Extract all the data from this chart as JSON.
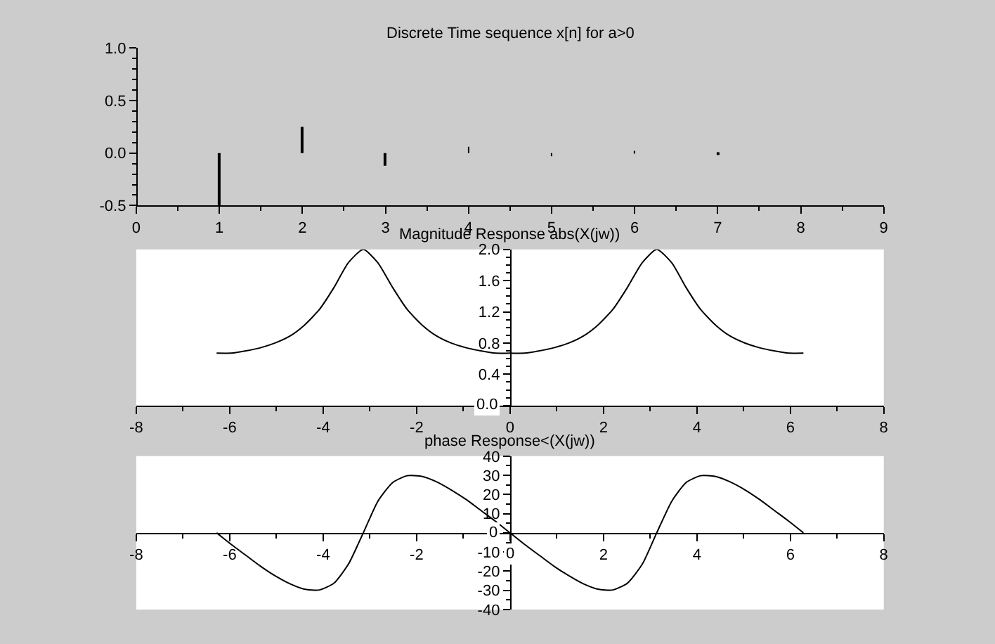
{
  "chart_data": [
    {
      "type": "bar",
      "title": "Discrete Time sequence x[n] for a>0",
      "x": [
        1,
        2,
        3,
        4,
        5,
        6,
        7,
        8,
        9
      ],
      "values": [
        -0.5,
        0.25,
        -0.12,
        0.06,
        -0.03,
        0.02,
        -0.01,
        0.0,
        0.0
      ],
      "color": "#000000",
      "xlim": [
        0,
        9
      ],
      "xticks": [
        0,
        1,
        2,
        3,
        4,
        5,
        6,
        7,
        8,
        9
      ],
      "ylim": [
        -0.5,
        1.0
      ],
      "yticks": [
        {
          "value": -0.5,
          "label": "-0.5"
        },
        {
          "value": 0,
          "label": "0.0"
        },
        {
          "value": 0.5,
          "label": "0.5"
        },
        {
          "value": 1.0,
          "label": "1.0"
        }
      ],
      "grid": false
    },
    {
      "type": "line",
      "title": "Magnitude Response abs(X(jw))",
      "x": [
        -6.28,
        -5.97,
        -5.65,
        -5.34,
        -5.03,
        -4.71,
        -4.4,
        -4.08,
        -3.77,
        -3.46,
        -3.14,
        -2.83,
        -2.51,
        -2.2,
        -1.88,
        -1.57,
        -1.26,
        -0.94,
        -0.63,
        -0.31,
        0,
        0.31,
        0.63,
        0.94,
        1.26,
        1.57,
        1.88,
        2.2,
        2.51,
        2.83,
        3.14,
        3.46,
        3.77,
        4.08,
        4.4,
        4.71,
        5.03,
        5.34,
        5.65,
        5.97,
        6.28
      ],
      "values": [
        0.67,
        0.67,
        0.7,
        0.74,
        0.8,
        0.89,
        1.03,
        1.23,
        1.51,
        1.83,
        2.0,
        1.83,
        1.51,
        1.23,
        1.03,
        0.89,
        0.8,
        0.74,
        0.7,
        0.67,
        0.67,
        0.67,
        0.7,
        0.74,
        0.8,
        0.89,
        1.03,
        1.23,
        1.51,
        1.83,
        2.0,
        1.83,
        1.51,
        1.23,
        1.03,
        0.89,
        0.8,
        0.74,
        0.7,
        0.67,
        0.67
      ],
      "color": "#000000",
      "xlim": [
        -8,
        8
      ],
      "xticks": [
        -8,
        -6,
        -4,
        -2,
        0,
        2,
        4,
        6,
        8
      ],
      "ylim": [
        0,
        2.0
      ],
      "yticks": [
        {
          "value": 0,
          "label": "0.0"
        },
        {
          "value": 0.4,
          "label": "0.4"
        },
        {
          "value": 0.8,
          "label": "0.8"
        },
        {
          "value": 1.2,
          "label": "1.2"
        },
        {
          "value": 1.6,
          "label": "1.6"
        },
        {
          "value": 2.0,
          "label": "2.0"
        }
      ],
      "grid": false
    },
    {
      "type": "line",
      "title": "phase Response<(X(jw))",
      "x": [
        -6.28,
        -5.97,
        -5.65,
        -5.34,
        -5.03,
        -4.71,
        -4.4,
        -4.08,
        -3.77,
        -3.46,
        -3.14,
        -2.83,
        -2.51,
        -2.2,
        -1.88,
        -1.57,
        -1.26,
        -0.94,
        -0.63,
        -0.31,
        0,
        0.31,
        0.63,
        0.94,
        1.26,
        1.57,
        1.88,
        2.2,
        2.51,
        2.83,
        3.14,
        3.46,
        3.77,
        4.08,
        4.4,
        4.71,
        5.03,
        5.34,
        5.65,
        5.97,
        6.28
      ],
      "values": [
        0,
        -6.0,
        -11.8,
        -17.4,
        -22.4,
        -26.6,
        -29.4,
        -29.8,
        -26.3,
        -16.4,
        0,
        16.4,
        26.3,
        29.8,
        29.4,
        26.6,
        22.4,
        17.4,
        11.8,
        6.0,
        0,
        -6.0,
        -11.8,
        -17.4,
        -22.4,
        -26.6,
        -29.4,
        -29.8,
        -26.3,
        -16.4,
        0,
        16.4,
        26.3,
        29.8,
        29.4,
        26.6,
        22.4,
        17.4,
        11.8,
        6.0,
        0
      ],
      "color": "#000000",
      "xlim": [
        -8,
        8
      ],
      "xticks": [
        -8,
        -6,
        -4,
        -2,
        0,
        2,
        4,
        6,
        8
      ],
      "ylim": [
        -40,
        40
      ],
      "yticks": [
        -40,
        -30,
        -20,
        -10,
        0,
        10,
        20,
        30,
        40
      ],
      "grid": false
    }
  ]
}
